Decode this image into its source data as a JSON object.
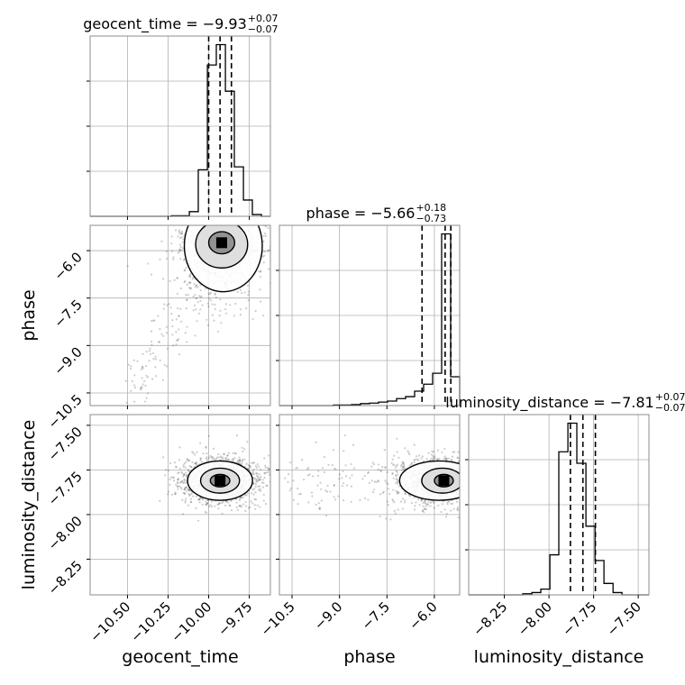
{
  "chart_data": {
    "type": "corner",
    "parameters": [
      "geocent_time",
      "phase",
      "luminosity_distance"
    ],
    "titles": [
      {
        "name": "geocent_time",
        "median": "−9.93",
        "upper": "+0.07",
        "lower": "−0.07"
      },
      {
        "name": "phase",
        "median": "−5.66",
        "upper": "+0.18",
        "lower": "−0.73"
      },
      {
        "name": "luminosity_distance",
        "median": "−7.81",
        "upper": "+0.07",
        "lower": "−0.07"
      }
    ],
    "ranges": {
      "geocent_time": [
        -10.73,
        -9.62
      ],
      "phase": [
        -10.9,
        -5.2
      ],
      "luminosity_distance": [
        -8.45,
        -7.44
      ]
    },
    "ticks": {
      "geocent_time": {
        "values": [
          -10.5,
          -10.25,
          -10.0,
          -9.75
        ],
        "labels": [
          "−10.50",
          "−10.25",
          "−10.00",
          "−9.75"
        ]
      },
      "phase": {
        "values": [
          -10.5,
          -9.0,
          -7.5,
          -6.0
        ],
        "labels": [
          "−10.5",
          "−9.0",
          "−7.5",
          "−6.0"
        ]
      },
      "luminosity_distance": {
        "values": [
          -8.25,
          -8.0,
          -7.75,
          -7.5
        ],
        "labels": [
          "−8.25",
          "−8.00",
          "−7.75",
          "−7.50"
        ]
      }
    },
    "quantiles": {
      "geocent_time": [
        -10.0,
        -9.93,
        -9.86
      ],
      "phase": [
        -6.39,
        -5.66,
        -5.48
      ],
      "luminosity_distance": [
        -7.88,
        -7.81,
        -7.74
      ]
    },
    "histograms": {
      "geocent_time": {
        "edges": [
          -10.73,
          -10.674,
          -10.619,
          -10.563,
          -10.508,
          -10.452,
          -10.397,
          -10.341,
          -10.286,
          -10.23,
          -10.175,
          -10.119,
          -10.064,
          -10.008,
          -9.953,
          -9.897,
          -9.842,
          -9.786,
          -9.731,
          -9.675,
          -9.62
        ],
        "counts": [
          0,
          0,
          0,
          0,
          0,
          0,
          0,
          0,
          0,
          1,
          1,
          8,
          80,
          260,
          295,
          215,
          85,
          28,
          3,
          0
        ]
      },
      "phase": {
        "edges": [
          -10.9,
          -10.615,
          -10.33,
          -10.045,
          -9.76,
          -9.475,
          -9.19,
          -8.905,
          -8.62,
          -8.335,
          -8.05,
          -7.765,
          -7.48,
          -7.195,
          -6.91,
          -6.625,
          -6.34,
          -6.055,
          -5.77,
          -5.485,
          -5.2
        ],
        "counts": [
          0,
          0,
          0,
          0,
          0,
          0,
          1,
          1,
          2,
          4,
          5,
          7,
          9,
          14,
          18,
          29,
          43,
          65,
          345,
          58
        ]
      },
      "luminosity_distance": {
        "edges": [
          -8.45,
          -8.4,
          -8.349,
          -8.298,
          -8.248,
          -8.197,
          -8.147,
          -8.096,
          -8.046,
          -7.995,
          -7.945,
          -7.894,
          -7.844,
          -7.793,
          -7.742,
          -7.692,
          -7.641,
          -7.591,
          -7.54,
          -7.49,
          -7.44
        ],
        "counts": [
          0,
          0,
          0,
          0,
          0,
          0,
          1,
          2,
          5,
          35,
          125,
          150,
          115,
          60,
          30,
          10,
          2,
          0,
          0,
          0
        ]
      }
    },
    "levels": {
      "geocent_time_vs_phase": [
        {
          "center": [
            -9.92,
            -5.75
          ],
          "rx": 0.08,
          "ry": 0.35
        },
        {
          "center": [
            -9.92,
            -5.8
          ],
          "rx": 0.16,
          "ry": 0.75
        },
        {
          "center": [
            -9.91,
            -5.85
          ],
          "rx": 0.24,
          "ry": 1.45
        }
      ],
      "geocent_time_vs_luminosity_distance": [
        {
          "center": [
            -9.93,
            -7.81
          ],
          "rx": 0.06,
          "ry": 0.035
        },
        {
          "center": [
            -9.93,
            -7.81
          ],
          "rx": 0.12,
          "ry": 0.07
        },
        {
          "center": [
            -9.93,
            -7.81
          ],
          "rx": 0.2,
          "ry": 0.11
        }
      ],
      "phase_vs_luminosity_distance": [
        {
          "center": [
            -5.7,
            -7.81
          ],
          "rx": 0.3,
          "ry": 0.035
        },
        {
          "center": [
            -5.75,
            -7.81
          ],
          "rx": 0.65,
          "ry": 0.07
        },
        {
          "center": [
            -5.85,
            -7.81
          ],
          "rx": 1.25,
          "ry": 0.11
        }
      ]
    },
    "grid": true,
    "colors": {
      "line": "#000000",
      "grid": "#b0b0b0",
      "frame": "#8c8c8c",
      "points": "#4d4d4d"
    }
  }
}
